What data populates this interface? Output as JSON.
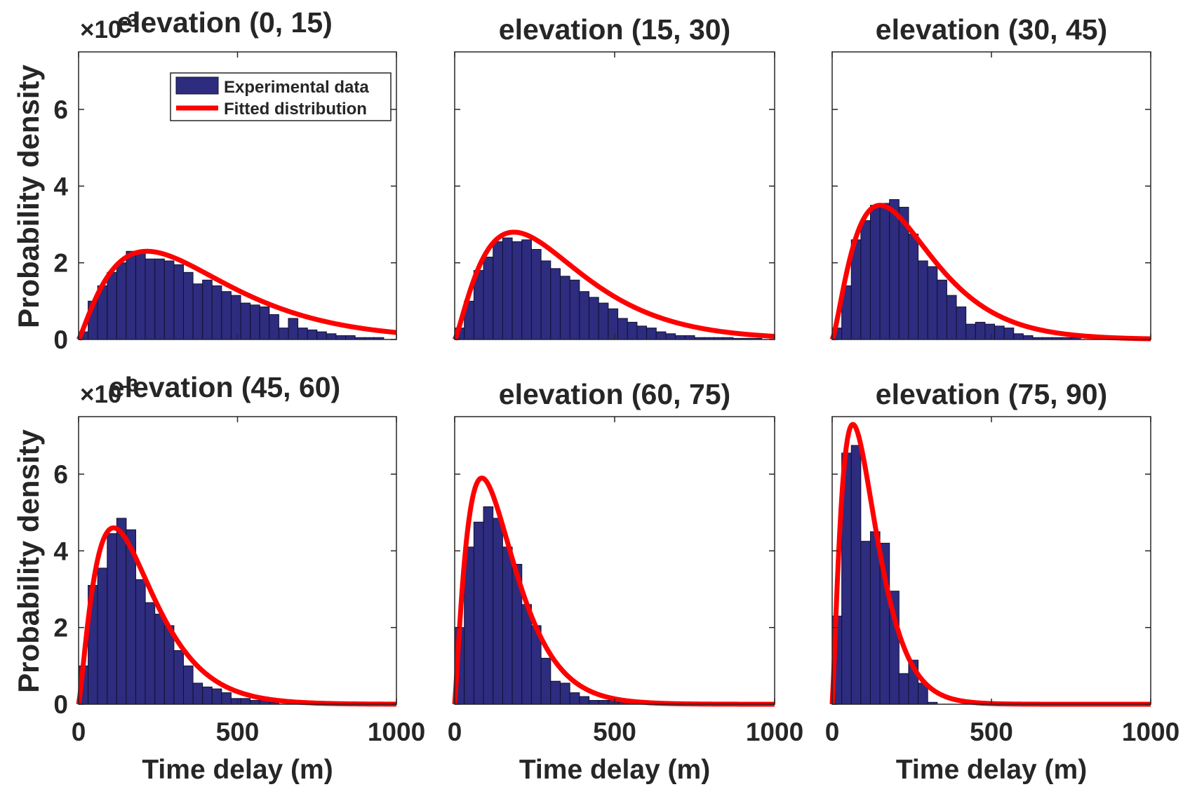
{
  "figure": {
    "ylabel": "Probability density",
    "xlabel": "Time delay (m)",
    "exponent_text": "×10",
    "exponent_power": "-3",
    "legend": {
      "data_label": "Experimental data",
      "fit_label": "Fitted distribution"
    },
    "colors": {
      "bar": "#2d2c7e",
      "fit": "#ff0000",
      "axis": "#262626"
    },
    "xticks": [
      "0",
      "500",
      "1000"
    ],
    "yticks": [
      "0",
      "2",
      "4",
      "6"
    ]
  },
  "chart_data": [
    {
      "type": "bar",
      "title": "elevation (0, 15)",
      "xlabel": "",
      "ylabel": "Probability density",
      "show_exponent": true,
      "show_legend": true,
      "xlim": [
        0,
        1000
      ],
      "ylim": [
        0,
        7.5
      ],
      "y_scale": "×10^-3",
      "bin_width": 30,
      "bin_starts": [
        0,
        30,
        60,
        90,
        120,
        150,
        180,
        210,
        240,
        270,
        300,
        330,
        360,
        390,
        420,
        450,
        480,
        510,
        540,
        570,
        600,
        630,
        660,
        690,
        720,
        750,
        780,
        810,
        840,
        870,
        900,
        930
      ],
      "values": [
        0.2,
        1.0,
        1.4,
        1.75,
        2.0,
        2.3,
        2.25,
        2.1,
        2.1,
        2.05,
        1.95,
        1.75,
        1.45,
        1.55,
        1.4,
        1.25,
        1.15,
        0.95,
        0.9,
        0.85,
        0.65,
        0.3,
        0.55,
        0.3,
        0.25,
        0.2,
        0.15,
        0.1,
        0.1,
        0.05,
        0.05,
        0.05
      ],
      "fit": {
        "name": "Fitted distribution",
        "shape": 2.2,
        "mode": 215,
        "peak": 2.3
      }
    },
    {
      "type": "bar",
      "title": "elevation (15, 30)",
      "xlabel": "",
      "ylabel": "",
      "show_exponent": false,
      "show_legend": false,
      "xlim": [
        0,
        1000
      ],
      "ylim": [
        0,
        7.5
      ],
      "y_scale": "×10^-3",
      "bin_width": 30,
      "bin_starts": [
        0,
        30,
        60,
        90,
        120,
        150,
        180,
        210,
        240,
        270,
        300,
        330,
        360,
        390,
        420,
        450,
        480,
        510,
        540,
        570,
        600,
        630,
        660,
        690,
        720,
        750,
        780,
        810,
        840,
        870,
        900,
        930
      ],
      "values": [
        0.3,
        1.0,
        1.8,
        2.15,
        2.55,
        2.65,
        2.55,
        2.6,
        2.35,
        2.05,
        1.85,
        1.65,
        1.55,
        1.25,
        1.1,
        0.95,
        0.8,
        0.55,
        0.45,
        0.35,
        0.3,
        0.2,
        0.15,
        0.1,
        0.1,
        0.05,
        0.05,
        0.05,
        0.05,
        0.03,
        0.03,
        0.03
      ],
      "fit": {
        "name": "Fitted distribution",
        "shape": 2.3,
        "mode": 185,
        "peak": 2.8
      }
    },
    {
      "type": "bar",
      "title": "elevation (30, 45)",
      "xlabel": "",
      "ylabel": "",
      "show_exponent": false,
      "show_legend": false,
      "xlim": [
        0,
        1000
      ],
      "ylim": [
        0,
        7.5
      ],
      "y_scale": "×10^-3",
      "bin_width": 30,
      "bin_starts": [
        0,
        30,
        60,
        90,
        120,
        150,
        180,
        210,
        240,
        270,
        300,
        330,
        360,
        390,
        420,
        450,
        480,
        510,
        540,
        570,
        600,
        630,
        660,
        690,
        720,
        750
      ],
      "values": [
        0.3,
        1.4,
        2.6,
        3.1,
        3.5,
        3.55,
        3.65,
        3.45,
        2.75,
        2.05,
        1.9,
        1.55,
        1.15,
        0.85,
        0.4,
        0.45,
        0.4,
        0.35,
        0.3,
        0.15,
        0.1,
        0.05,
        0.05,
        0.05,
        0.05,
        0.05
      ],
      "fit": {
        "name": "Fitted distribution",
        "shape": 2.4,
        "mode": 150,
        "peak": 3.5
      }
    },
    {
      "type": "bar",
      "title": "elevation (45, 60)",
      "xlabel": "Time delay (m)",
      "ylabel": "Probability density",
      "show_exponent": true,
      "show_legend": false,
      "xlim": [
        0,
        1000
      ],
      "ylim": [
        0,
        7.5
      ],
      "y_scale": "×10^-3",
      "bin_width": 30,
      "bin_starts": [
        0,
        30,
        60,
        90,
        120,
        150,
        180,
        210,
        240,
        270,
        300,
        330,
        360,
        390,
        420,
        450,
        480,
        510,
        540,
        570,
        600
      ],
      "values": [
        1.0,
        3.1,
        3.55,
        4.45,
        4.85,
        4.55,
        3.25,
        2.65,
        2.35,
        2.05,
        1.4,
        1.0,
        0.55,
        0.45,
        0.4,
        0.3,
        0.15,
        0.15,
        0.1,
        0.1,
        0.05
      ],
      "fit": {
        "name": "Fitted distribution",
        "shape": 2.3,
        "mode": 110,
        "peak": 4.6
      }
    },
    {
      "type": "bar",
      "title": "elevation (60, 75)",
      "xlabel": "Time delay (m)",
      "ylabel": "",
      "show_exponent": false,
      "show_legend": false,
      "xlim": [
        0,
        1000
      ],
      "ylim": [
        0,
        7.5
      ],
      "y_scale": "×10^-3",
      "bin_width": 30,
      "bin_starts": [
        0,
        30,
        60,
        90,
        120,
        150,
        180,
        210,
        240,
        270,
        300,
        330,
        360,
        390,
        420,
        450,
        480,
        510,
        540,
        570
      ],
      "values": [
        2.0,
        4.1,
        4.75,
        5.15,
        4.85,
        4.1,
        3.65,
        2.6,
        2.05,
        1.2,
        0.6,
        0.55,
        0.3,
        0.2,
        0.1,
        0.1,
        0.1,
        0.05,
        0.05,
        0.05
      ],
      "fit": {
        "name": "Fitted distribution",
        "shape": 2.2,
        "mode": 85,
        "peak": 5.9
      }
    },
    {
      "type": "bar",
      "title": "elevation (75, 90)",
      "xlabel": "Time delay (m)",
      "ylabel": "",
      "show_exponent": false,
      "show_legend": false,
      "xlim": [
        0,
        1000
      ],
      "ylim": [
        0,
        7.5
      ],
      "y_scale": "×10^-3",
      "bin_width": 30,
      "bin_starts": [
        0,
        30,
        60,
        90,
        120,
        150,
        180,
        210,
        240,
        270,
        300
      ],
      "values": [
        2.3,
        6.55,
        6.75,
        4.25,
        4.5,
        4.2,
        2.95,
        0.8,
        1.15,
        0.55,
        0.05
      ],
      "fit": {
        "name": "Fitted distribution",
        "shape": 2.3,
        "mode": 65,
        "peak": 7.3
      }
    }
  ]
}
